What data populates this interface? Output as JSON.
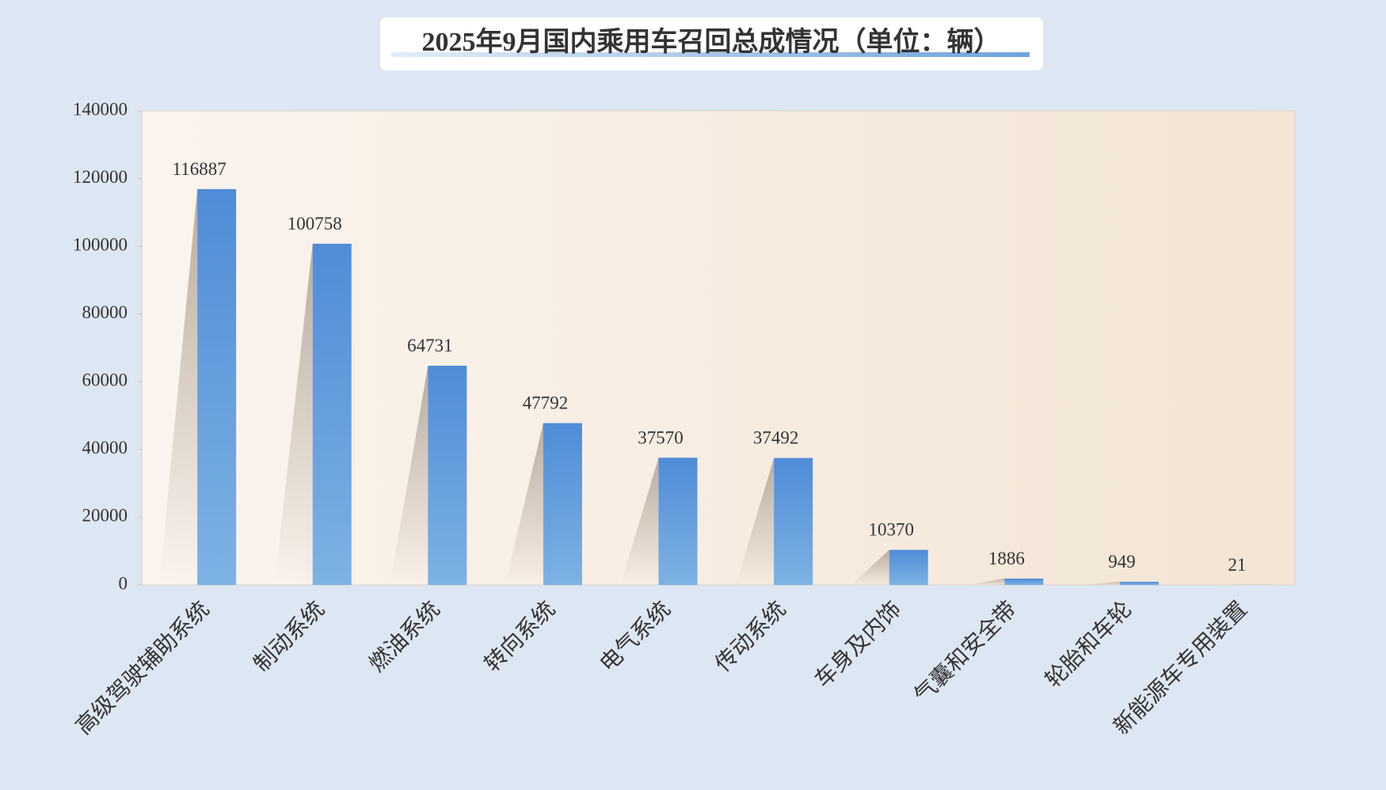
{
  "chart_data": {
    "type": "bar",
    "title": "2025年9月国内乘用车召回总成情况（单位：辆）",
    "categories": [
      "高级驾驶辅助系统",
      "制动系统",
      "燃油系统",
      "转向系统",
      "电气系统",
      "传动系统",
      "车身及内饰",
      "气囊和安全带",
      "轮胎和车轮",
      "新能源车专用装置"
    ],
    "values": [
      116887,
      100758,
      64731,
      47792,
      37570,
      37492,
      10370,
      1886,
      949,
      21
    ],
    "color": "#5a93d8",
    "ylim": [
      0,
      140000
    ],
    "yticks": [
      0,
      20000,
      40000,
      60000,
      80000,
      100000,
      120000,
      140000
    ],
    "grid": false
  }
}
